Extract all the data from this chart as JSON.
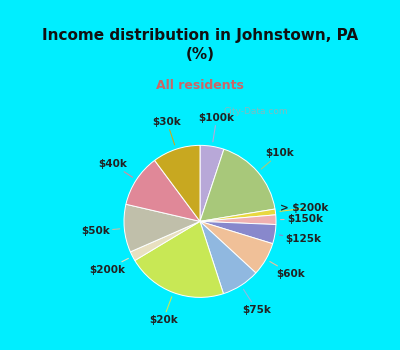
{
  "title": "Income distribution in Johnstown, PA\n(%)",
  "subtitle": "All residents",
  "title_color": "#111111",
  "subtitle_color": "#cc6666",
  "bg_cyan": "#00eeff",
  "bg_chart": "#ddf0e8",
  "labels": [
    "$100k",
    "$10k",
    "> $200k",
    "$150k",
    "$125k",
    "$60k",
    "$75k",
    "$20k",
    "$200k",
    "$50k",
    "$40k",
    "$30k"
  ],
  "values": [
    5,
    17,
    1.2,
    2,
    4,
    7,
    8,
    21,
    2,
    10,
    11,
    10
  ],
  "colors": [
    "#b8a8d8",
    "#a8c87a",
    "#e8d840",
    "#f0b0b0",
    "#8888cc",
    "#f0c098",
    "#90b8e0",
    "#c8e855",
    "#e8e0c0",
    "#c0bfaa",
    "#e08898",
    "#c8a820"
  ],
  "label_fontsize": 7.5,
  "label_color": "#222222",
  "watermark": "City-Data.com",
  "title_fontsize": 11,
  "subtitle_fontsize": 9
}
